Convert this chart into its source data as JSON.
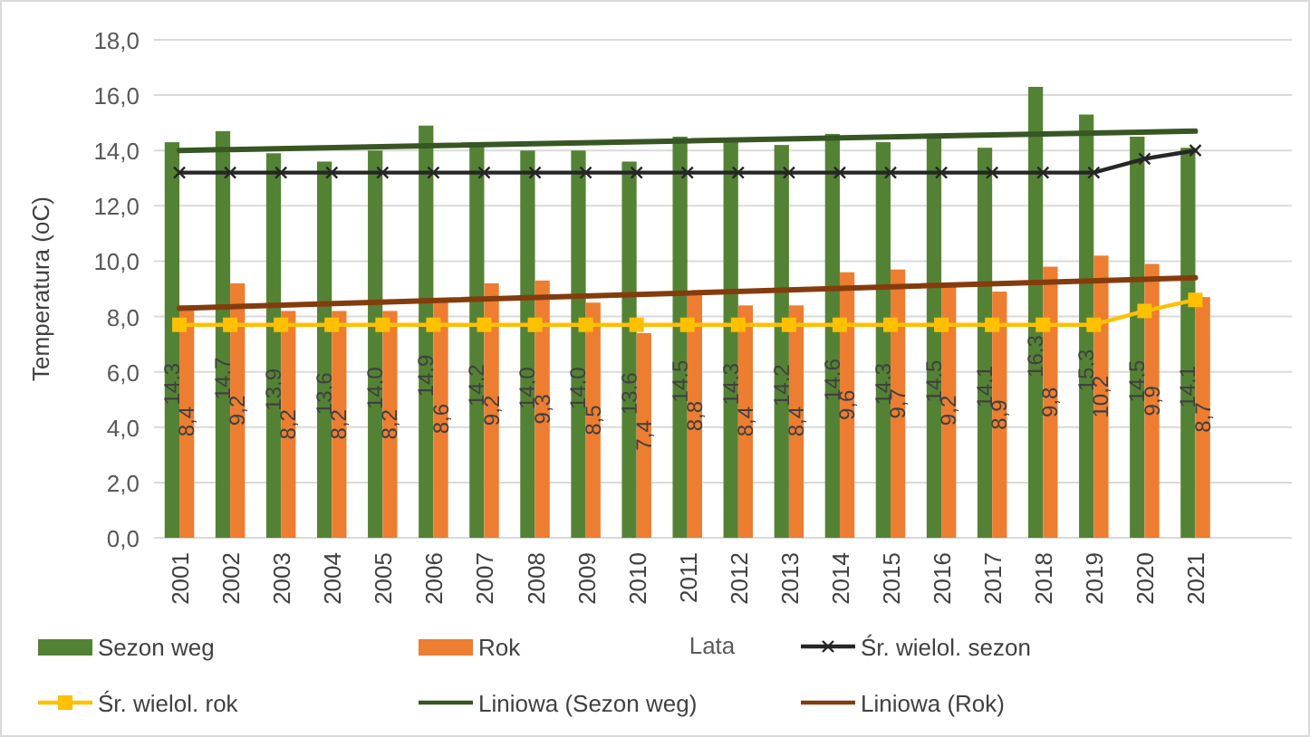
{
  "chart_data": {
    "type": "bar",
    "xlabel": "Lata",
    "ylabel": "Temperatura (oC)",
    "categories": [
      "2001",
      "2002",
      "2003",
      "2004",
      "2005",
      "2006",
      "2007",
      "2008",
      "2009",
      "2010",
      "2011",
      "2012",
      "2013",
      "2014",
      "2015",
      "2016",
      "2017",
      "2018",
      "2019",
      "2020",
      "2021"
    ],
    "series": [
      {
        "name": "Sezon weg",
        "color": "#548235",
        "values": [
          14.3,
          14.7,
          13.9,
          13.6,
          14.0,
          14.9,
          14.2,
          14.0,
          14.0,
          13.6,
          14.5,
          14.3,
          14.2,
          14.6,
          14.3,
          14.5,
          14.1,
          16.3,
          15.3,
          14.5,
          14.1
        ],
        "value_labels": [
          "14,3",
          "14,7",
          "13,9",
          "13,6",
          "14,0",
          "14,9",
          "14,2",
          "14,0",
          "14,0",
          "13,6",
          "14,5",
          "14,3",
          "14,2",
          "14,6",
          "14,3",
          "14,5",
          "14,1",
          "16,3",
          "15,3",
          "14,5",
          "14,1"
        ]
      },
      {
        "name": "Rok",
        "color": "#ed7d31",
        "values": [
          8.4,
          9.2,
          8.2,
          8.2,
          8.2,
          8.6,
          9.2,
          9.3,
          8.5,
          7.4,
          8.8,
          8.4,
          8.4,
          9.6,
          9.7,
          9.2,
          8.9,
          9.8,
          10.2,
          9.9,
          8.7
        ],
        "value_labels": [
          "8,4",
          "9,2",
          "8,2",
          "8,2",
          "8,2",
          "8,6",
          "9,2",
          "9,3",
          "8,5",
          "7,4",
          "8,8",
          "8,4",
          "8,4",
          "9,6",
          "9,7",
          "9,2",
          "8,9",
          "9,8",
          "10,2",
          "9,9",
          "8,7"
        ]
      },
      {
        "name": "Śr. wielol. sezon",
        "type": "line",
        "color": "#262626",
        "marker": "cross",
        "values": [
          13.2,
          13.2,
          13.2,
          13.2,
          13.2,
          13.2,
          13.2,
          13.2,
          13.2,
          13.2,
          13.2,
          13.2,
          13.2,
          13.2,
          13.2,
          13.2,
          13.2,
          13.2,
          13.2,
          13.7,
          14.0
        ]
      },
      {
        "name": "Śr. wielol. rok",
        "type": "line",
        "color": "#ffc000",
        "marker": "square",
        "values": [
          7.7,
          7.7,
          7.7,
          7.7,
          7.7,
          7.7,
          7.7,
          7.7,
          7.7,
          7.7,
          7.7,
          7.7,
          7.7,
          7.7,
          7.7,
          7.7,
          7.7,
          7.7,
          7.7,
          8.2,
          8.6
        ]
      },
      {
        "name": "Liniowa (Sezon weg)",
        "type": "line",
        "color": "#375623",
        "values": [
          14.0,
          null,
          null,
          null,
          null,
          null,
          null,
          null,
          null,
          null,
          null,
          null,
          null,
          null,
          null,
          null,
          null,
          null,
          null,
          null,
          14.7
        ]
      },
      {
        "name": "Liniowa (Rok)",
        "type": "line",
        "color": "#843c0c",
        "values": [
          8.3,
          null,
          null,
          null,
          null,
          null,
          null,
          null,
          null,
          null,
          null,
          null,
          null,
          null,
          null,
          null,
          null,
          null,
          null,
          null,
          9.4
        ]
      }
    ],
    "ylim": [
      0,
      18
    ],
    "yticks": [
      {
        "value": 0,
        "label": "0,0"
      },
      {
        "value": 2,
        "label": "2,0"
      },
      {
        "value": 4,
        "label": "4,0"
      },
      {
        "value": 6,
        "label": "6,0"
      },
      {
        "value": 8,
        "label": "8,0"
      },
      {
        "value": 10,
        "label": "10,0"
      },
      {
        "value": 12,
        "label": "12,0"
      },
      {
        "value": 14,
        "label": "14,0"
      },
      {
        "value": 16,
        "label": "16,0"
      },
      {
        "value": 18,
        "label": "18,0"
      }
    ],
    "grid": "y",
    "legend": "bottom",
    "line_style": "solid"
  }
}
